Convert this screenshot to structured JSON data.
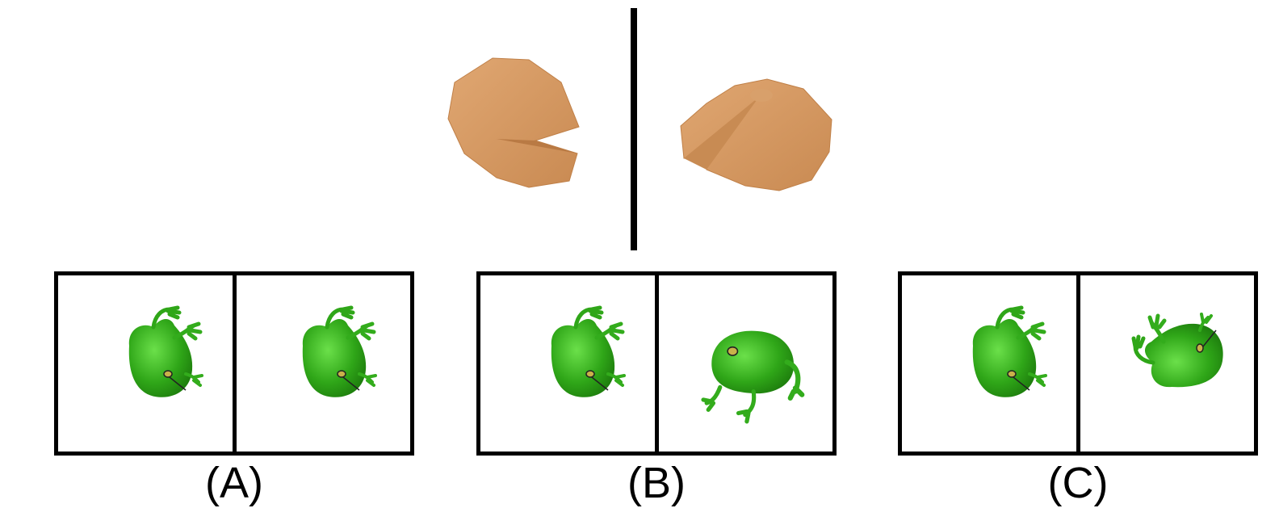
{
  "prompt_images": {
    "left": "fortune-cookie-view-1",
    "right": "fortune-cookie-view-2"
  },
  "options": [
    {
      "label": "(A)",
      "left_image": "frog-top-view",
      "right_image": "frog-top-view"
    },
    {
      "label": "(B)",
      "left_image": "frog-top-view",
      "right_image": "frog-front-view"
    },
    {
      "label": "(C)",
      "left_image": "frog-top-view",
      "right_image": "frog-rotated-view"
    }
  ],
  "colors": {
    "cookie": "#d69a63",
    "frog": "#3db51e",
    "frame": "#000000"
  }
}
